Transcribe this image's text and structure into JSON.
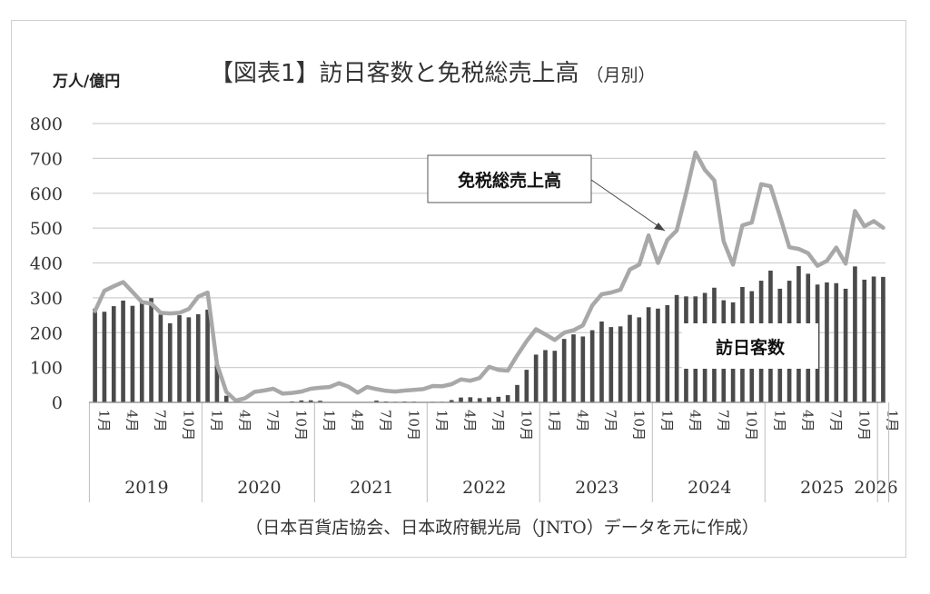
{
  "chart_data": {
    "type": "bar+line",
    "title": "【図表1】訪日客数と免税総売上高",
    "title_suffix": "（月別）",
    "unit_label": "万人/億円",
    "source": "（日本百貨店協会、日本政府観光局（JNTO）データを元に作成）",
    "ylim": [
      0,
      800
    ],
    "yticks": [
      0,
      100,
      200,
      300,
      400,
      500,
      600,
      700,
      800
    ],
    "grid": true,
    "month_tick_labels": [
      "1月",
      "4月",
      "7月",
      "10月"
    ],
    "years": [
      {
        "label": "2019",
        "months": 12
      },
      {
        "label": "2020",
        "months": 12
      },
      {
        "label": "2021",
        "months": 12
      },
      {
        "label": "2022",
        "months": 12
      },
      {
        "label": "2023",
        "months": 12
      },
      {
        "label": "2024",
        "months": 12
      },
      {
        "label": "2025",
        "months": 12
      },
      {
        "label": "2026",
        "months": 1
      }
    ],
    "series": [
      {
        "name": "訪日客数",
        "type": "bar",
        "color": "#4a4a4a",
        "values": [
          269,
          260,
          276,
          292,
          277,
          288,
          299,
          252,
          227,
          250,
          244,
          253,
          266,
          109,
          19,
          0.3,
          0.2,
          0.3,
          0.4,
          0.9,
          1.4,
          2.8,
          5.6,
          5.9,
          4.6,
          0.7,
          1.2,
          1.1,
          1.0,
          1.0,
          5.1,
          2.6,
          1.8,
          2.3,
          2.1,
          1.2,
          1.7,
          1.7,
          6.6,
          13.9,
          14.7,
          12.0,
          14.5,
          16.0,
          20.7,
          49.9,
          93.5,
          137.0,
          150,
          148,
          182,
          195,
          189,
          207,
          232,
          216,
          218,
          251,
          244,
          273,
          269,
          279,
          308,
          304,
          304,
          314,
          329,
          293,
          287,
          331,
          319,
          349,
          378,
          326,
          349,
          391,
          369,
          338,
          344,
          342,
          326,
          390,
          352,
          361,
          360
        ]
      },
      {
        "name": "免税総売上高",
        "type": "line",
        "color": "#a8a8a8",
        "values": [
          262,
          320,
          333,
          345,
          317,
          288,
          283,
          257,
          255,
          257,
          268,
          303,
          315,
          110,
          30,
          5,
          12,
          30,
          34,
          39,
          25,
          27,
          31,
          39,
          42,
          44,
          55,
          45,
          28,
          44,
          38,
          33,
          31,
          34,
          36,
          38,
          47,
          46,
          52,
          66,
          62,
          70,
          102,
          93,
          91,
          135,
          175,
          210,
          195,
          179,
          200,
          207,
          221,
          278,
          310,
          315,
          323,
          381,
          395,
          479,
          400,
          466,
          493,
          601,
          717,
          667,
          637,
          462,
          395,
          508,
          516,
          626,
          620,
          534,
          445,
          440,
          428,
          392,
          406,
          444,
          398,
          549,
          505,
          520,
          501
        ]
      }
    ],
    "annotations": [
      {
        "text": "免税総売上高",
        "target": "免税総売上高"
      },
      {
        "text": "訪日客数",
        "target": "訪日客数"
      }
    ]
  }
}
